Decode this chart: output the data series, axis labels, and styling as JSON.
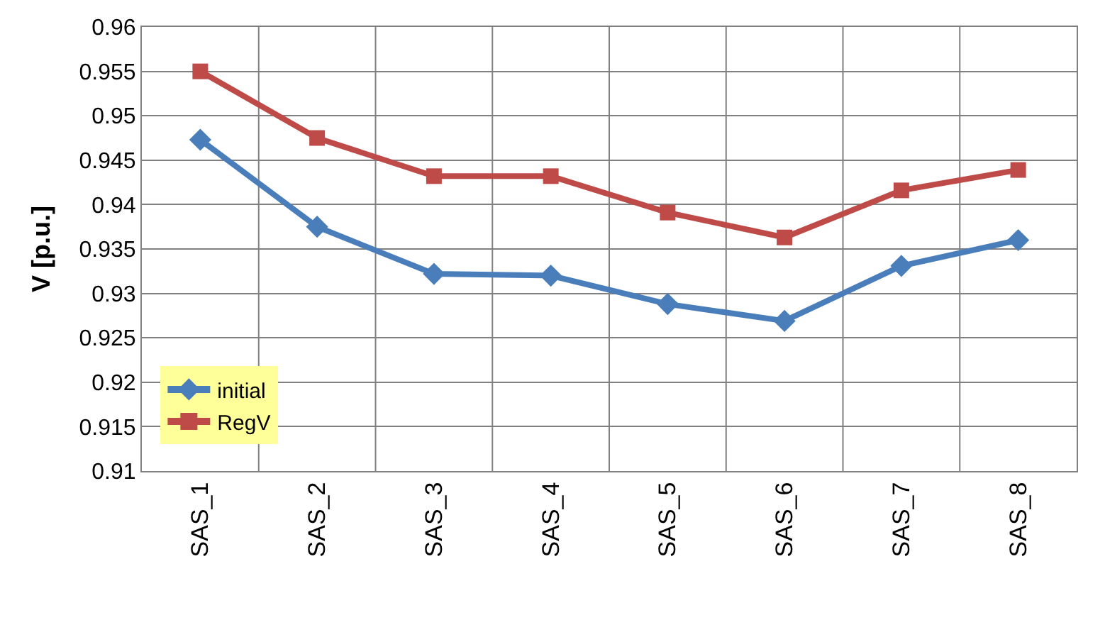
{
  "chart_data": {
    "type": "line",
    "ylabel": "V [p.u.]",
    "categories": [
      "SAS_1",
      "SAS_2",
      "SAS_3",
      "SAS_4",
      "SAS_5",
      "SAS_6",
      "SAS_7",
      "SAS_8"
    ],
    "series": [
      {
        "name": "initial",
        "color": "#4a7ebb",
        "marker": "diamond",
        "values": [
          0.9473,
          0.9375,
          0.9322,
          0.932,
          0.9288,
          0.9269,
          0.9331,
          0.936
        ]
      },
      {
        "name": "RegV",
        "color": "#be4b48",
        "marker": "square",
        "values": [
          0.955,
          0.9475,
          0.9432,
          0.9432,
          0.9391,
          0.9363,
          0.9416,
          0.9439
        ]
      }
    ],
    "ylim": [
      0.91,
      0.96
    ],
    "yticks": [
      0.91,
      0.915,
      0.92,
      0.925,
      0.93,
      0.935,
      0.94,
      0.945,
      0.95,
      0.955,
      0.96
    ],
    "grid": true,
    "legend": "bottom left",
    "line_style": "solid"
  }
}
